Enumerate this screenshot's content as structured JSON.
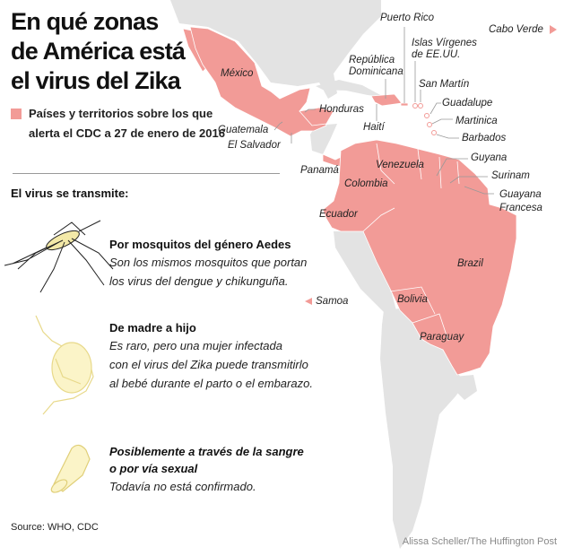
{
  "title": [
    "En qué zonas",
    "de América está",
    "el virus del Zika"
  ],
  "legend": {
    "text": "Países y territorios sobre los que alerta el CDC a 27 de enero de 2016",
    "color": "#f29b97"
  },
  "transmission": {
    "heading": "El virus se transmite:",
    "items": [
      {
        "title": "Por mosquitos del género Aedes",
        "body": [
          "Son los mismos mosquitos que portan",
          "los virus del dengue y chikunguña."
        ],
        "icon": "mosquito-icon"
      },
      {
        "title": "De madre a hijo",
        "body": [
          "Es raro, pero una mujer infectada",
          "con el virus del Zika puede transmitirlo",
          "al bebé durante el parto o el embarazo."
        ],
        "icon": "pregnant-woman-icon"
      },
      {
        "title": [
          "Posiblemente a través de la sangre",
          "o por vía sexual"
        ],
        "body": [
          "Todavía no está confirmado."
        ],
        "icon": "condom-icon"
      }
    ]
  },
  "map": {
    "colors": {
      "affected": "#f29b97",
      "land": "#e3e3e3",
      "water": "#ffffff"
    },
    "labels": {
      "mexico": "México",
      "guatemala": "Guatemala",
      "el_salvador": "El Salvador",
      "honduras": "Honduras",
      "haiti": "Haití",
      "rep_dom": [
        "República",
        "Dominicana"
      ],
      "puerto_rico": "Puerto Rico",
      "islas_virgenes": [
        "Islas Vírgenes",
        "de EE.UU."
      ],
      "san_martin": "San Martín",
      "guadalupe": "Guadalupe",
      "martinica": "Martinica",
      "barbados": "Barbados",
      "cabo_verde": "Cabo Verde",
      "panama": "Panamá",
      "venezuela": "Venezuela",
      "colombia": "Colombia",
      "ecuador": "Ecuador",
      "guyana": "Guyana",
      "surinam": "Surinam",
      "guayana_francesa": [
        "Guayana",
        "Francesa"
      ],
      "brazil": "Brazil",
      "samoa": "Samoa",
      "bolivia": "Bolivia",
      "paraguay": "Paraguay"
    }
  },
  "source": "Source: WHO, CDC",
  "credit": "Alissa Scheller/The Huffington Post"
}
